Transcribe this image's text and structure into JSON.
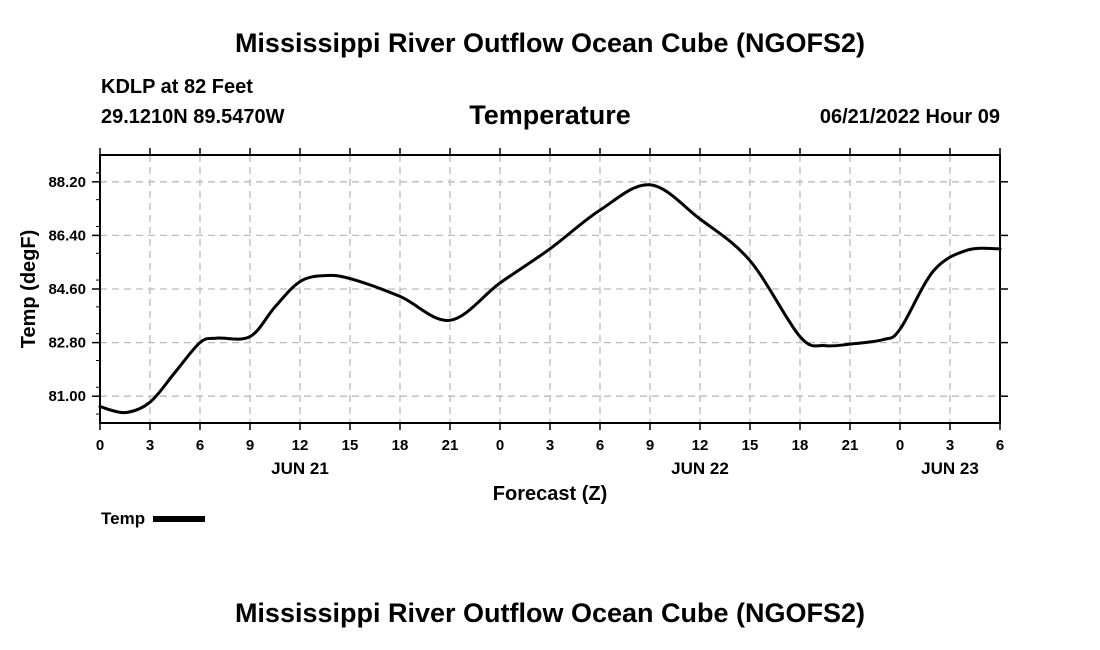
{
  "header": {
    "title": "Mississippi River Outflow Ocean Cube (NGOFS2)",
    "station": "KDLP at 82 Feet",
    "coords": "29.1210N  89.5470W",
    "variable": "Temperature",
    "datetime": "06/21/2022 Hour 09"
  },
  "footer": {
    "title": "Mississippi River Outflow Ocean Cube (NGOFS2)"
  },
  "legend": {
    "label": "Temp"
  },
  "colors": {
    "line": "#000000",
    "grid": "#bbbbbb"
  },
  "chart_data": {
    "type": "line",
    "title": "Temperature",
    "xlabel": "Forecast (Z)",
    "ylabel": "Temp (degF)",
    "xlim": [
      0,
      54
    ],
    "ylim": [
      80.1,
      89.1
    ],
    "grid": true,
    "x_ticks": [
      {
        "x": 0,
        "label": "0"
      },
      {
        "x": 3,
        "label": "3"
      },
      {
        "x": 6,
        "label": "6"
      },
      {
        "x": 9,
        "label": "9"
      },
      {
        "x": 12,
        "label": "12"
      },
      {
        "x": 15,
        "label": "15"
      },
      {
        "x": 18,
        "label": "18"
      },
      {
        "x": 21,
        "label": "21"
      },
      {
        "x": 24,
        "label": "0"
      },
      {
        "x": 27,
        "label": "3"
      },
      {
        "x": 30,
        "label": "6"
      },
      {
        "x": 33,
        "label": "9"
      },
      {
        "x": 36,
        "label": "12"
      },
      {
        "x": 39,
        "label": "15"
      },
      {
        "x": 42,
        "label": "18"
      },
      {
        "x": 45,
        "label": "21"
      },
      {
        "x": 48,
        "label": "0"
      },
      {
        "x": 51,
        "label": "3"
      },
      {
        "x": 54,
        "label": "6"
      }
    ],
    "date_labels": [
      {
        "x": 12,
        "label": "JUN 21"
      },
      {
        "x": 36,
        "label": "JUN 22"
      },
      {
        "x": 51,
        "label": "JUN 23"
      }
    ],
    "y_ticks": [
      {
        "y": 81.0,
        "label": "81.00"
      },
      {
        "y": 82.8,
        "label": "82.80"
      },
      {
        "y": 84.6,
        "label": "84.60"
      },
      {
        "y": 86.4,
        "label": "86.40"
      },
      {
        "y": 88.2,
        "label": "88.20"
      }
    ],
    "series": [
      {
        "name": "Temp",
        "x": [
          0,
          1.5,
          3,
          4.5,
          6,
          7,
          9,
          10.5,
          12,
          13.5,
          15,
          18,
          21,
          24,
          27,
          30,
          33,
          36,
          39,
          42,
          43.5,
          45,
          47,
          48,
          50,
          52,
          54
        ],
        "y": [
          80.65,
          80.45,
          80.8,
          81.8,
          82.8,
          82.95,
          83.0,
          84.0,
          84.85,
          85.05,
          84.95,
          84.35,
          83.55,
          84.8,
          85.95,
          87.25,
          88.1,
          86.95,
          85.55,
          83.0,
          82.7,
          82.75,
          82.9,
          83.25,
          85.2,
          85.9,
          85.95
        ]
      }
    ]
  }
}
